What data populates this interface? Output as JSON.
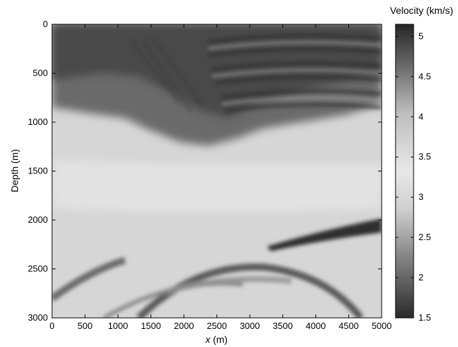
{
  "chart_data": {
    "type": "heatmap",
    "title": "",
    "xlabel_var": "x",
    "xlabel_unit": " (m)",
    "ylabel": "Depth (m)",
    "xlim": [
      0,
      5000
    ],
    "ylim": [
      0,
      3000
    ],
    "y_inverted": true,
    "xticks": [
      0,
      500,
      1000,
      1500,
      2000,
      2500,
      3000,
      3500,
      4000,
      4500,
      5000
    ],
    "yticks": [
      0,
      500,
      1000,
      1500,
      2000,
      2500,
      3000
    ],
    "colorbar": {
      "title": "Velocity (km/s)",
      "range": [
        1.5,
        5.15
      ],
      "ticks": [
        1.5,
        2,
        2.5,
        3,
        3.5,
        4,
        4.5,
        5
      ],
      "colormap": "gray_reversed",
      "low_color": "#2a2a2a",
      "high_color": "#f0f0f0"
    }
  }
}
